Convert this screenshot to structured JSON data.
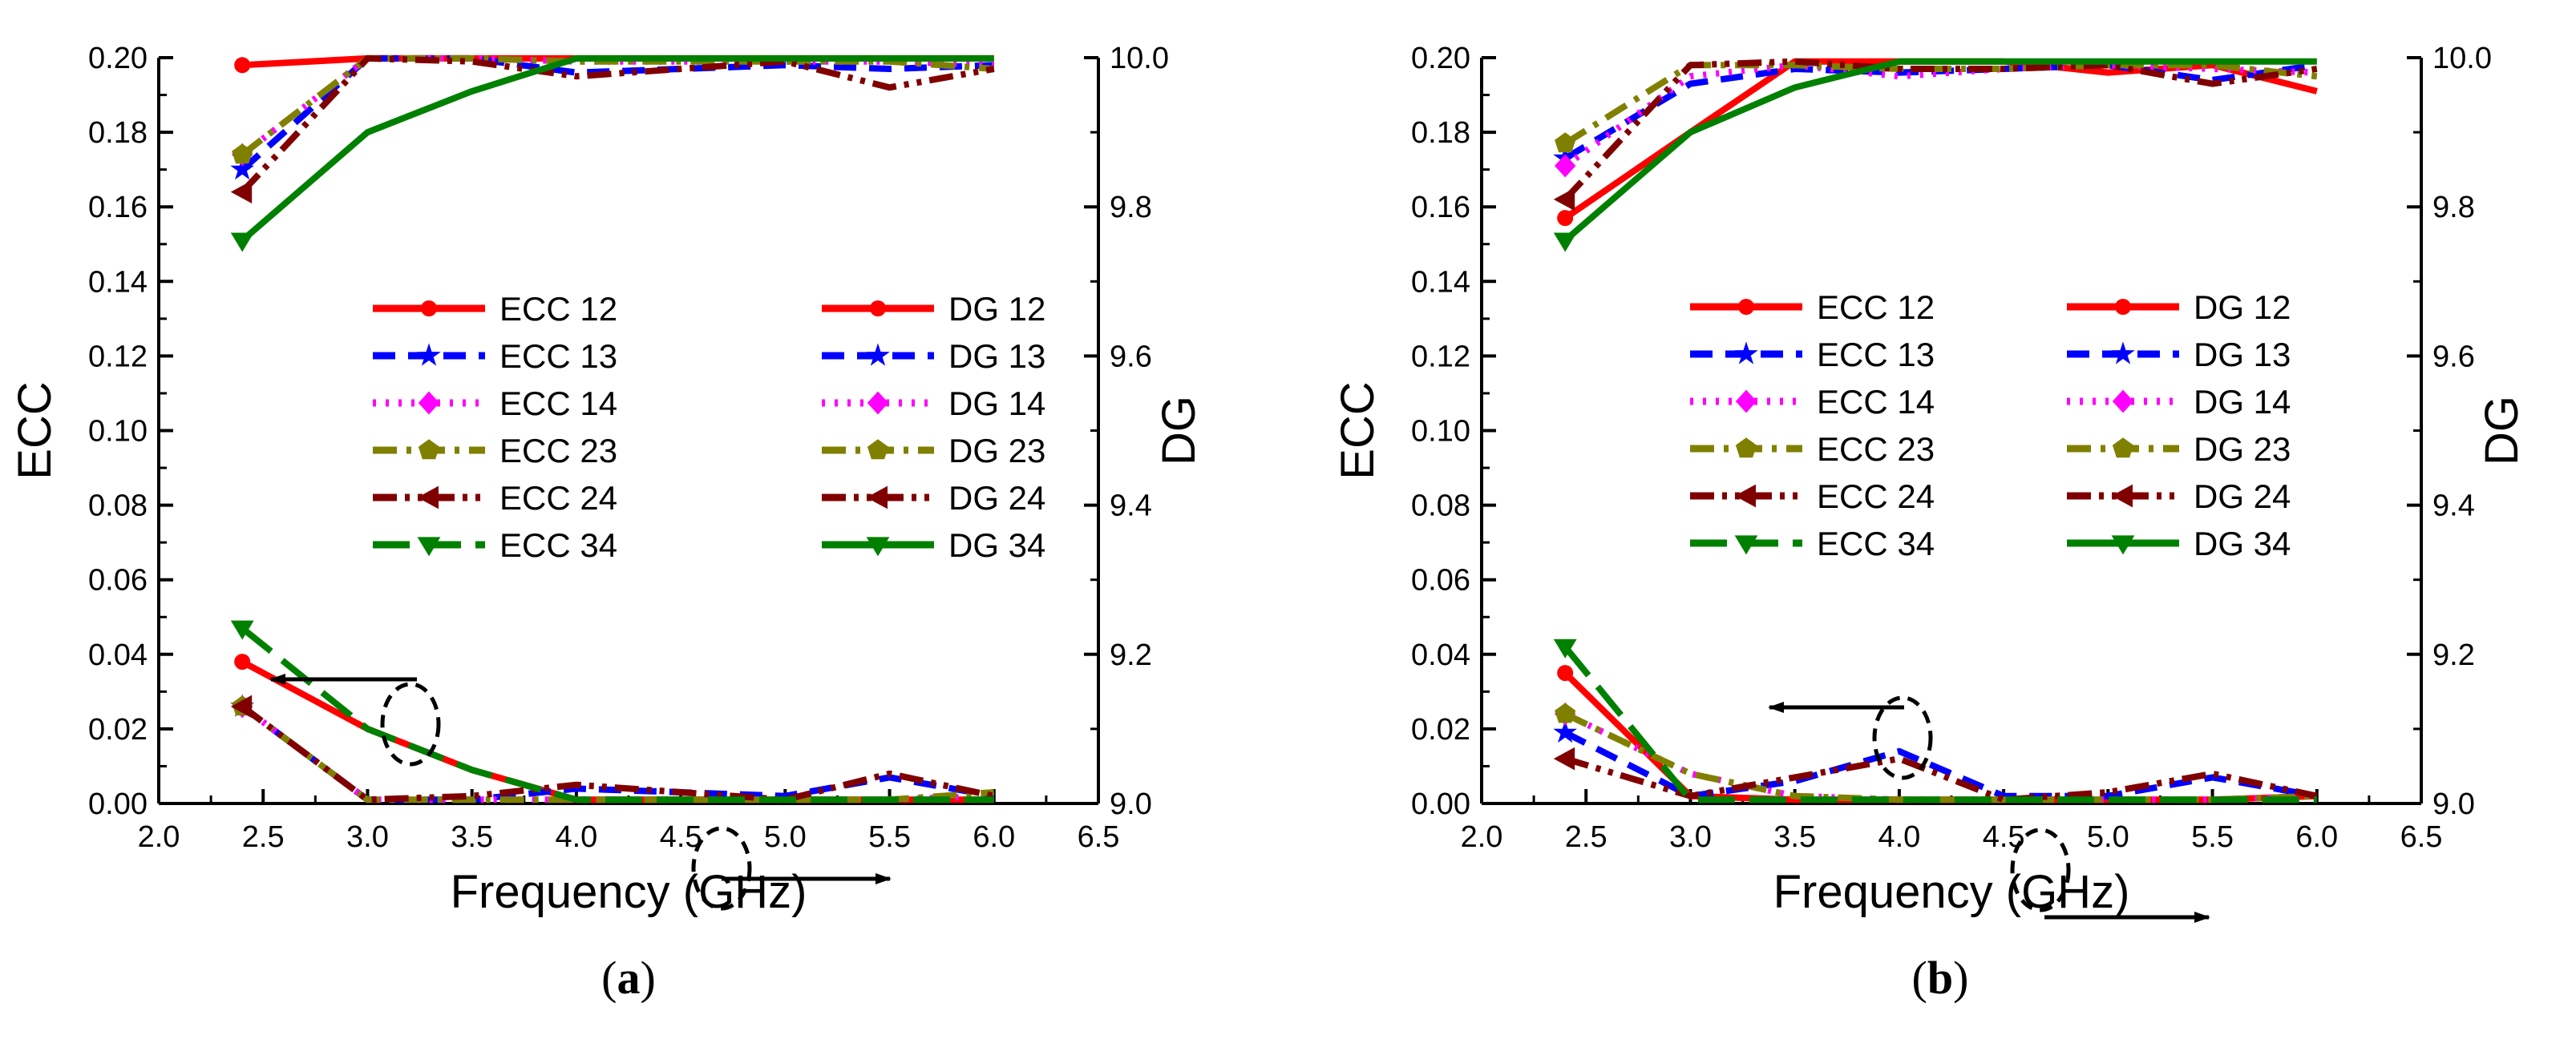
{
  "chart_data": [
    {
      "type": "line",
      "panel_label": "a",
      "xlabel": "Frequency (GHz)",
      "ylabel_left": "ECC",
      "ylabel_right": "DG",
      "xlim": [
        2.0,
        6.5
      ],
      "ylim_left": [
        0.0,
        0.2
      ],
      "ylim_right": [
        9.0,
        10.0
      ],
      "x_ticks": [
        "2.0",
        "2.5",
        "3.0",
        "3.5",
        "4.0",
        "4.5",
        "5.0",
        "5.5",
        "6.0",
        "6.5"
      ],
      "y_left_ticks": [
        "0.00",
        "0.02",
        "0.04",
        "0.06",
        "0.08",
        "0.10",
        "0.12",
        "0.14",
        "0.16",
        "0.18",
        "0.20"
      ],
      "y_right_ticks": [
        "9.0",
        "9.2",
        "9.4",
        "9.6",
        "9.8",
        "10.0"
      ],
      "ecc_series": [
        {
          "name": "ECC 12",
          "color": "#ff0000",
          "dash": "solid",
          "marker": "circle",
          "x": [
            2.4,
            3.0,
            3.5,
            4.0,
            4.5,
            5.0,
            5.5,
            6.0
          ],
          "values": [
            0.038,
            0.02,
            0.009,
            0.001,
            0.001,
            0.001,
            0.001,
            0.001
          ]
        },
        {
          "name": "ECC 13",
          "color": "#0000ff",
          "dash": "dash",
          "marker": "star",
          "x": [
            2.4,
            3.0,
            3.5,
            4.0,
            4.5,
            5.0,
            5.5,
            6.0
          ],
          "values": [
            0.026,
            0.001,
            0.001,
            0.004,
            0.003,
            0.002,
            0.007,
            0.002
          ]
        },
        {
          "name": "ECC 14",
          "color": "#ff00ff",
          "dash": "dot",
          "marker": "diamond",
          "x": [
            2.4,
            3.0,
            3.5,
            4.0,
            4.5,
            5.0,
            5.5,
            6.0
          ],
          "values": [
            0.026,
            0.001,
            0.001,
            0.001,
            0.001,
            0.001,
            0.001,
            0.002
          ]
        },
        {
          "name": "ECC 23",
          "color": "#808000",
          "dash": "dashdot",
          "marker": "pentagon",
          "x": [
            2.4,
            3.0,
            3.5,
            4.0,
            4.5,
            5.0,
            5.5,
            6.0
          ],
          "values": [
            0.026,
            0.001,
            0.001,
            0.001,
            0.001,
            0.001,
            0.001,
            0.003
          ]
        },
        {
          "name": "ECC 24",
          "color": "#800000",
          "dash": "dashdotdot",
          "marker": "triangle-left",
          "x": [
            2.4,
            3.0,
            3.5,
            4.0,
            4.5,
            5.0,
            5.5,
            6.0
          ],
          "values": [
            0.026,
            0.001,
            0.002,
            0.005,
            0.003,
            0.001,
            0.008,
            0.002
          ]
        },
        {
          "name": "ECC 34",
          "color": "#008000",
          "dash": "longdash",
          "marker": "triangle-down",
          "x": [
            2.4,
            3.0,
            3.5,
            4.0,
            4.5,
            5.0,
            5.5,
            6.0
          ],
          "values": [
            0.047,
            0.02,
            0.009,
            0.001,
            0.001,
            0.001,
            0.001,
            0.001
          ]
        }
      ],
      "dg_series": [
        {
          "name": "DG 12",
          "color": "#ff0000",
          "dash": "solid",
          "marker": "circle",
          "x": [
            2.4,
            3.0,
            3.5,
            4.0,
            4.5,
            5.0,
            5.5,
            6.0
          ],
          "values": [
            9.99,
            9.999,
            9.999,
            9.999,
            9.999,
            9.999,
            9.999,
            9.999
          ]
        },
        {
          "name": "DG 13",
          "color": "#0000ff",
          "dash": "dash",
          "marker": "star",
          "x": [
            2.4,
            3.0,
            3.5,
            4.0,
            4.5,
            5.0,
            5.5,
            6.0
          ],
          "values": [
            9.85,
            9.999,
            9.999,
            9.98,
            9.985,
            9.99,
            9.985,
            9.99
          ]
        },
        {
          "name": "DG 14",
          "color": "#ff00ff",
          "dash": "dot",
          "marker": "diamond",
          "x": [
            2.4,
            3.0,
            3.5,
            4.0,
            4.5,
            5.0,
            5.5,
            6.0
          ],
          "values": [
            9.87,
            9.999,
            9.999,
            9.995,
            9.995,
            9.995,
            9.995,
            9.99
          ]
        },
        {
          "name": "DG 23",
          "color": "#808000",
          "dash": "dashdot",
          "marker": "pentagon",
          "x": [
            2.4,
            3.0,
            3.5,
            4.0,
            4.5,
            5.0,
            5.5,
            6.0
          ],
          "values": [
            9.87,
            9.999,
            9.999,
            9.995,
            9.995,
            9.995,
            9.995,
            9.985
          ]
        },
        {
          "name": "DG 24",
          "color": "#800000",
          "dash": "dashdotdot",
          "marker": "triangle-left",
          "x": [
            2.4,
            3.0,
            3.5,
            4.0,
            4.5,
            5.0,
            5.5,
            6.0
          ],
          "values": [
            9.82,
            9.999,
            9.995,
            9.975,
            9.985,
            9.995,
            9.96,
            9.985
          ]
        },
        {
          "name": "DG 34",
          "color": "#008000",
          "dash": "solid",
          "marker": "triangle-down",
          "x": [
            2.4,
            3.0,
            3.5,
            4.0,
            4.5,
            5.0,
            5.5,
            6.0
          ],
          "values": [
            9.755,
            9.9,
            9.955,
            9.999,
            9.999,
            9.999,
            9.999,
            9.999
          ]
        }
      ]
    },
    {
      "type": "line",
      "panel_label": "b",
      "xlabel": "Frequency (GHz)",
      "ylabel_left": "ECC",
      "ylabel_right": "DG",
      "xlim": [
        2.0,
        6.5
      ],
      "ylim_left": [
        0.0,
        0.2
      ],
      "ylim_right": [
        9.0,
        10.0
      ],
      "x_ticks": [
        "2.0",
        "2.5",
        "3.0",
        "3.5",
        "4.0",
        "4.5",
        "5.0",
        "5.5",
        "6.0",
        "6.5"
      ],
      "y_left_ticks": [
        "0.00",
        "0.02",
        "0.04",
        "0.06",
        "0.08",
        "0.10",
        "0.12",
        "0.14",
        "0.16",
        "0.18",
        "0.20"
      ],
      "y_right_ticks": [
        "9.0",
        "9.2",
        "9.4",
        "9.6",
        "9.8",
        "10.0"
      ],
      "ecc_series": [
        {
          "name": "ECC 12",
          "color": "#ff0000",
          "dash": "solid",
          "marker": "circle",
          "x": [
            2.4,
            3.0,
            3.5,
            4.0,
            4.5,
            5.0,
            5.5,
            6.0
          ],
          "values": [
            0.035,
            0.002,
            0.001,
            0.001,
            0.001,
            0.001,
            0.001,
            0.002
          ]
        },
        {
          "name": "ECC 13",
          "color": "#0000ff",
          "dash": "dash",
          "marker": "star",
          "x": [
            2.4,
            3.0,
            3.5,
            4.0,
            4.5,
            5.0,
            5.5,
            6.0
          ],
          "values": [
            0.019,
            0.002,
            0.006,
            0.014,
            0.002,
            0.002,
            0.007,
            0.002
          ]
        },
        {
          "name": "ECC 14",
          "color": "#ff00ff",
          "dash": "dot",
          "marker": "diamond",
          "x": [
            2.4,
            3.0,
            3.5,
            4.0,
            4.5,
            5.0,
            5.5,
            6.0
          ],
          "values": [
            0.024,
            0.008,
            0.002,
            0.001,
            0.001,
            0.001,
            0.001,
            0.002
          ]
        },
        {
          "name": "ECC 23",
          "color": "#808000",
          "dash": "dashdot",
          "marker": "pentagon",
          "x": [
            2.4,
            3.0,
            3.5,
            4.0,
            4.5,
            5.0,
            5.5,
            6.0
          ],
          "values": [
            0.024,
            0.008,
            0.002,
            0.001,
            0.001,
            0.001,
            0.001,
            0.002
          ]
        },
        {
          "name": "ECC 24",
          "color": "#800000",
          "dash": "dashdotdot",
          "marker": "triangle-left",
          "x": [
            2.4,
            3.0,
            3.5,
            4.0,
            4.5,
            5.0,
            5.5,
            6.0
          ],
          "values": [
            0.012,
            0.002,
            0.007,
            0.012,
            0.001,
            0.003,
            0.008,
            0.002
          ]
        },
        {
          "name": "ECC 34",
          "color": "#008000",
          "dash": "longdash",
          "marker": "triangle-down",
          "x": [
            2.4,
            3.0,
            3.5,
            4.0,
            4.5,
            5.0,
            5.5,
            6.0
          ],
          "values": [
            0.042,
            0.001,
            0.001,
            0.001,
            0.001,
            0.001,
            0.001,
            0.001
          ]
        }
      ],
      "dg_series": [
        {
          "name": "DG 12",
          "color": "#ff0000",
          "dash": "solid",
          "marker": "circle",
          "x": [
            2.4,
            3.0,
            3.5,
            4.0,
            4.5,
            5.0,
            5.5,
            6.0
          ],
          "values": [
            9.785,
            9.9,
            9.995,
            9.995,
            9.995,
            9.98,
            9.99,
            9.955
          ]
        },
        {
          "name": "DG 13",
          "color": "#0000ff",
          "dash": "dash",
          "marker": "star",
          "x": [
            2.4,
            3.0,
            3.5,
            4.0,
            4.5,
            5.0,
            5.5,
            6.0
          ],
          "values": [
            9.865,
            9.965,
            9.985,
            9.98,
            9.985,
            9.99,
            9.97,
            9.99
          ]
        },
        {
          "name": "DG 14",
          "color": "#ff00ff",
          "dash": "dot",
          "marker": "diamond",
          "x": [
            2.4,
            3.0,
            3.5,
            4.0,
            4.5,
            5.0,
            5.5,
            6.0
          ],
          "values": [
            9.855,
            9.975,
            9.99,
            9.975,
            9.985,
            9.99,
            9.985,
            9.98
          ]
        },
        {
          "name": "DG 23",
          "color": "#808000",
          "dash": "dashdot",
          "marker": "pentagon",
          "x": [
            2.4,
            3.0,
            3.5,
            4.0,
            4.5,
            5.0,
            5.5,
            6.0
          ],
          "values": [
            9.885,
            9.99,
            9.99,
            9.985,
            9.985,
            9.99,
            9.99,
            9.975
          ]
        },
        {
          "name": "DG 24",
          "color": "#800000",
          "dash": "dashdotdot",
          "marker": "triangle-left",
          "x": [
            2.4,
            3.0,
            3.5,
            4.0,
            4.5,
            5.0,
            5.5,
            6.0
          ],
          "values": [
            9.81,
            9.99,
            9.995,
            9.985,
            9.985,
            9.99,
            9.965,
            9.985
          ]
        },
        {
          "name": "DG 34",
          "color": "#008000",
          "dash": "solid",
          "marker": "triangle-down",
          "x": [
            2.4,
            3.0,
            3.5,
            4.0,
            4.5,
            5.0,
            5.5,
            6.0
          ],
          "values": [
            9.755,
            9.9,
            9.96,
            9.995,
            9.995,
            9.995,
            9.995,
            9.995
          ]
        }
      ]
    }
  ]
}
